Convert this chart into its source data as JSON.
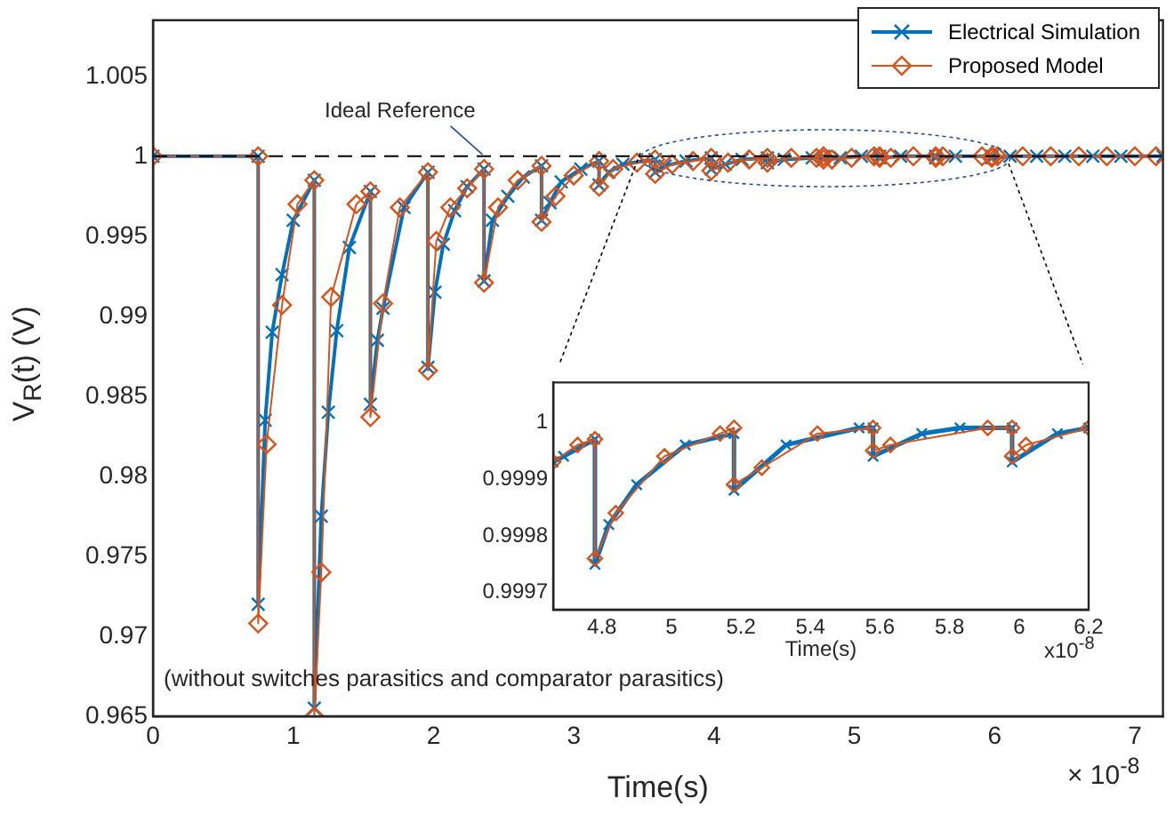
{
  "chart_data": [
    {
      "type": "line",
      "xlabel": "Time(s)",
      "ylabel": "V$_{R}$(t) (V)",
      "xlim": [
        0,
        7.2
      ],
      "xticks": [
        0,
        1,
        2,
        3,
        4,
        5,
        6,
        7
      ],
      "ylim": [
        0.965,
        1.0085
      ],
      "yticks": [
        0.965,
        0.97,
        0.975,
        0.98,
        0.985,
        0.99,
        0.995,
        1,
        1.005
      ],
      "legend": "top right",
      "grid": false,
      "ref_lines": [
        {
          "axis": "y",
          "value": 1,
          "label": "Ideal Reference",
          "color": "#000000",
          "line_style": "dashed"
        }
      ],
      "annotations": [
        "(without switches parasitics and comparator parasitics)",
        "× 10$^{-8}$"
      ],
      "series": [
        {
          "name": "Electrical Simulation",
          "color": "#0072bd",
          "marker": "cross",
          "x": [
            0,
            0.75,
            0.75,
            0.8,
            0.85,
            0.92,
            1.0,
            1.15,
            1.15,
            1.2,
            1.25,
            1.31,
            1.4,
            1.55,
            1.55,
            1.6,
            1.64,
            1.79,
            1.96,
            1.96,
            2.01,
            2.07,
            2.15,
            2.24,
            2.36,
            2.36,
            2.42,
            2.53,
            2.64,
            2.77,
            2.77,
            2.83,
            2.91,
            3.05,
            3.18,
            3.18,
            3.25,
            3.35,
            3.58,
            3.58,
            3.65,
            3.8,
            3.98,
            3.98,
            4.08,
            4.2,
            4.38,
            4.38,
            4.5,
            4.7,
            4.78,
            4.78,
            4.9,
            5.05,
            5.18,
            5.18,
            5.33,
            5.58,
            5.58,
            5.72,
            5.98,
            5.98,
            6.11,
            6.3,
            6.5,
            6.7,
            6.9,
            7.2
          ],
          "values": [
            1,
            1,
            0.972,
            0.9835,
            0.989,
            0.9926,
            0.996,
            0.9985,
            0.9655,
            0.9775,
            0.984,
            0.9891,
            0.9943,
            0.9978,
            0.9845,
            0.9885,
            0.9905,
            0.9968,
            0.999,
            0.9868,
            0.9915,
            0.9945,
            0.9966,
            0.9981,
            0.9992,
            0.9922,
            0.996,
            0.9975,
            0.9987,
            0.9994,
            0.996,
            0.9971,
            0.9984,
            0.9992,
            0.9997,
            0.9982,
            0.999,
            0.9995,
            0.9998,
            0.999,
            0.9994,
            0.9997,
            0.9999,
            0.9992,
            0.9995,
            0.9998,
            0.9999,
            0.9996,
            0.9998,
            0.9999,
            1,
            0.9998,
            0.9999,
            1,
            1,
            0.9999,
            1,
            1,
            0.9999,
            1,
            1,
            0.9999,
            1,
            1,
            1,
            1,
            1,
            1
          ]
        },
        {
          "name": "Proposed Model",
          "color": "#d95319",
          "marker": "diamond",
          "x": [
            0,
            0.75,
            0.75,
            0.81,
            0.92,
            1.03,
            1.15,
            1.15,
            1.2,
            1.27,
            1.45,
            1.55,
            1.55,
            1.64,
            1.76,
            1.96,
            1.96,
            2.02,
            2.12,
            2.24,
            2.36,
            2.36,
            2.46,
            2.6,
            2.77,
            2.77,
            2.87,
            3.0,
            3.18,
            3.18,
            3.28,
            3.45,
            3.58,
            3.58,
            3.7,
            3.85,
            3.98,
            3.98,
            4.1,
            4.25,
            4.38,
            4.38,
            4.55,
            4.73,
            4.78,
            4.78,
            4.84,
            4.98,
            5.14,
            5.18,
            5.18,
            5.26,
            5.42,
            5.58,
            5.58,
            5.63,
            5.91,
            5.98,
            5.98,
            6.02,
            6.2,
            6.4,
            6.6,
            6.8,
            7.0,
            7.15
          ],
          "values": [
            1,
            1,
            0.9708,
            0.982,
            0.9907,
            0.997,
            0.9985,
            0.965,
            0.974,
            0.9912,
            0.997,
            0.9978,
            0.9837,
            0.9908,
            0.9968,
            0.999,
            0.9866,
            0.9947,
            0.9968,
            0.998,
            0.9992,
            0.9921,
            0.9968,
            0.9985,
            0.9994,
            0.9959,
            0.9975,
            0.9988,
            0.9997,
            0.9981,
            0.9992,
            0.9996,
            0.9998,
            0.9989,
            0.9995,
            0.9997,
            0.9999,
            0.9991,
            0.9996,
            0.9998,
            0.9999,
            0.9996,
            0.9999,
            0.9999,
            1,
            0.9998,
            0.9998,
            0.9999,
            1,
            1,
            0.9999,
            0.9999,
            1,
            1,
            0.9999,
            1,
            1,
            1,
            0.9999,
            1,
            1,
            1,
            1,
            1,
            1,
            1
          ]
        }
      ]
    },
    {
      "type": "line",
      "xlabel": "Time(s)",
      "xlim": [
        4.66,
        6.2
      ],
      "xticks": [
        4.8,
        5,
        5.2,
        5.4,
        5.6,
        5.8,
        6,
        6.2
      ],
      "ylim": [
        0.99967,
        1.00007
      ],
      "yticks": [
        0.9997,
        0.9998,
        0.9999,
        1
      ],
      "grid": false,
      "annotations": [
        "x10$^{-8}$"
      ],
      "series": [
        {
          "color": "#0072bd",
          "marker": "cross",
          "x": [
            4.66,
            4.69,
            4.78,
            4.78,
            4.82,
            4.9,
            5.04,
            5.18,
            5.18,
            5.33,
            5.54,
            5.58,
            5.58,
            5.72,
            5.83,
            5.98,
            5.98,
            6.11,
            6.2
          ],
          "values": [
            0.99993,
            0.99994,
            0.99997,
            0.99975,
            0.99982,
            0.99989,
            0.99996,
            0.99998,
            0.99988,
            0.99996,
            0.99999,
            0.99999,
            0.99994,
            0.99998,
            0.99999,
            0.99999,
            0.99993,
            0.99998,
            0.99999
          ]
        },
        {
          "color": "#d95319",
          "marker": "diamond",
          "x": [
            4.66,
            4.73,
            4.78,
            4.78,
            4.84,
            4.98,
            5.14,
            5.18,
            5.18,
            5.26,
            5.42,
            5.58,
            5.58,
            5.63,
            5.91,
            5.98,
            5.98,
            6.02,
            6.2
          ],
          "values": [
            0.99993,
            0.99996,
            0.99997,
            0.99976,
            0.99984,
            0.99994,
            0.99998,
            0.99999,
            0.99989,
            0.99992,
            0.99998,
            0.99999,
            0.99995,
            0.99996,
            0.99999,
            0.99999,
            0.99994,
            0.99996,
            0.99999
          ]
        }
      ]
    }
  ]
}
